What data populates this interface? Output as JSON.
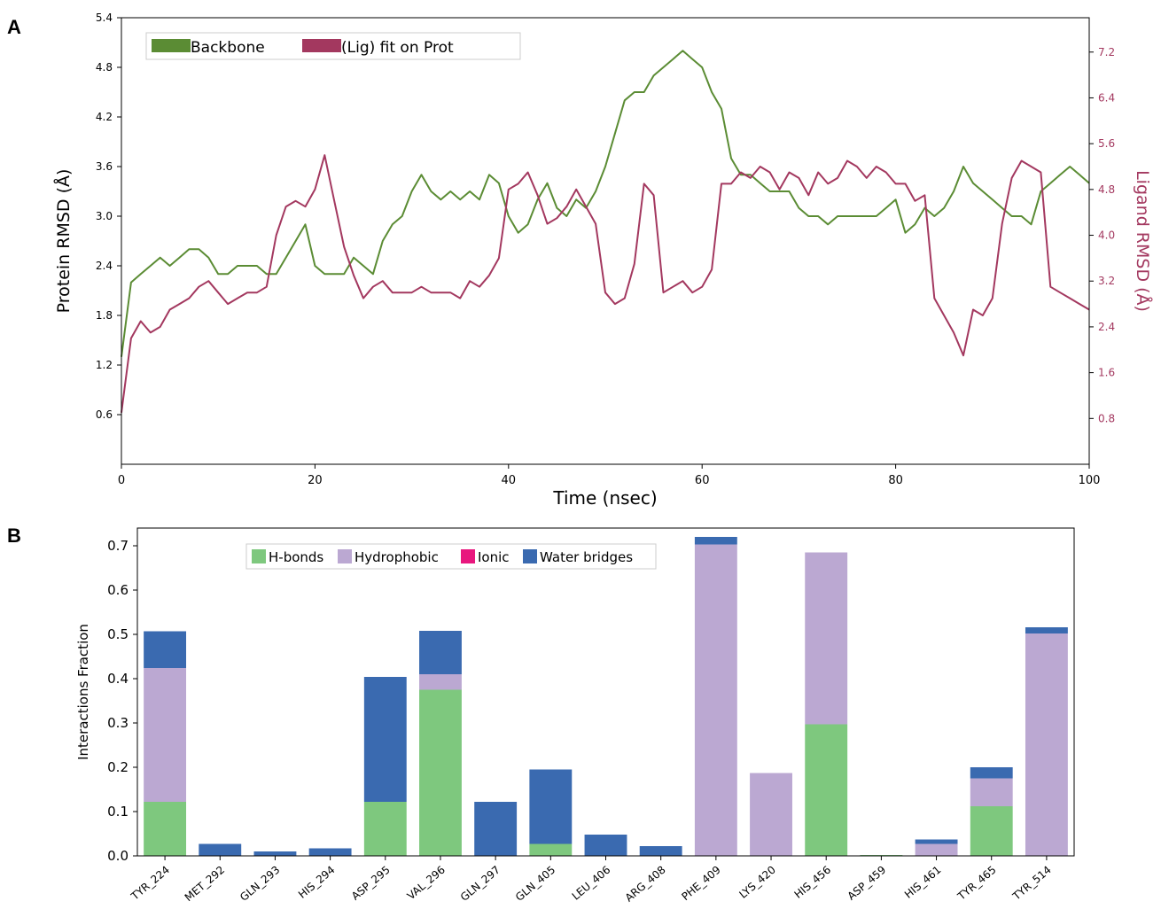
{
  "panels": {
    "a_label": "A",
    "b_label": "B"
  },
  "chart_data": [
    {
      "type": "line",
      "panel": "A",
      "xlabel": "Time (nsec)",
      "ylabel_left": "Protein RMSD (Å)",
      "ylabel_right": "Ligand RMSD (Å)",
      "xlim": [
        0,
        100
      ],
      "ylim_left": [
        0,
        5.4
      ],
      "ylim_right": [
        0,
        7.8
      ],
      "x_ticks": [
        0,
        20,
        40,
        60,
        80,
        100
      ],
      "y_ticks_left": [
        "0.6",
        "1.2",
        "1.8",
        "2.4",
        "3.0",
        "3.6",
        "4.2",
        "4.8",
        "5.4"
      ],
      "y_ticks_right": [
        "0.8",
        "1.6",
        "2.4",
        "3.2",
        "4.0",
        "4.8",
        "5.6",
        "6.4",
        "7.2"
      ],
      "legend_position": "top-left",
      "series": [
        {
          "name": "Backbone",
          "axis": "left",
          "color": "#5b8c34",
          "x": [
            0,
            1,
            2,
            3,
            4,
            5,
            6,
            7,
            8,
            9,
            10,
            11,
            12,
            13,
            14,
            15,
            16,
            17,
            18,
            19,
            20,
            21,
            22,
            23,
            24,
            25,
            26,
            27,
            28,
            29,
            30,
            31,
            32,
            33,
            34,
            35,
            36,
            37,
            38,
            39,
            40,
            41,
            42,
            43,
            44,
            45,
            46,
            47,
            48,
            49,
            50,
            51,
            52,
            53,
            54,
            55,
            56,
            57,
            58,
            59,
            60,
            61,
            62,
            63,
            64,
            65,
            66,
            67,
            68,
            69,
            70,
            71,
            72,
            73,
            74,
            75,
            76,
            77,
            78,
            79,
            80,
            81,
            82,
            83,
            84,
            85,
            86,
            87,
            88,
            89,
            90,
            91,
            92,
            93,
            94,
            95,
            96,
            97,
            98,
            99,
            100
          ],
          "y": [
            1.3,
            2.2,
            2.3,
            2.4,
            2.5,
            2.4,
            2.5,
            2.6,
            2.6,
            2.5,
            2.3,
            2.3,
            2.4,
            2.4,
            2.4,
            2.3,
            2.3,
            2.5,
            2.7,
            2.9,
            2.4,
            2.3,
            2.3,
            2.3,
            2.5,
            2.4,
            2.3,
            2.7,
            2.9,
            3.0,
            3.3,
            3.5,
            3.3,
            3.2,
            3.3,
            3.2,
            3.3,
            3.2,
            3.5,
            3.4,
            3.0,
            2.8,
            2.9,
            3.2,
            3.4,
            3.1,
            3.0,
            3.2,
            3.1,
            3.3,
            3.6,
            4.0,
            4.4,
            4.5,
            4.5,
            4.7,
            4.8,
            4.9,
            5.0,
            4.9,
            4.8,
            4.5,
            4.3,
            3.7,
            3.5,
            3.5,
            3.4,
            3.3,
            3.3,
            3.3,
            3.1,
            3.0,
            3.0,
            2.9,
            3.0,
            3.0,
            3.0,
            3.0,
            3.0,
            3.1,
            3.2,
            2.8,
            2.9,
            3.1,
            3.0,
            3.1,
            3.3,
            3.6,
            3.4,
            3.3,
            3.2,
            3.1,
            3.0,
            3.0,
            2.9,
            3.3,
            3.4,
            3.5,
            3.6,
            3.5,
            3.4
          ]
        },
        {
          "name": "(Lig) fit on Prot",
          "axis": "right",
          "color": "#a3385f",
          "x": [
            0,
            1,
            2,
            3,
            4,
            5,
            6,
            7,
            8,
            9,
            10,
            11,
            12,
            13,
            14,
            15,
            16,
            17,
            18,
            19,
            20,
            21,
            22,
            23,
            24,
            25,
            26,
            27,
            28,
            29,
            30,
            31,
            32,
            33,
            34,
            35,
            36,
            37,
            38,
            39,
            40,
            41,
            42,
            43,
            44,
            45,
            46,
            47,
            48,
            49,
            50,
            51,
            52,
            53,
            54,
            55,
            56,
            57,
            58,
            59,
            60,
            61,
            62,
            63,
            64,
            65,
            66,
            67,
            68,
            69,
            70,
            71,
            72,
            73,
            74,
            75,
            76,
            77,
            78,
            79,
            80,
            81,
            82,
            83,
            84,
            85,
            86,
            87,
            88,
            89,
            90,
            91,
            92,
            93,
            94,
            95,
            96,
            97,
            98,
            99,
            100
          ],
          "y": [
            0.9,
            2.2,
            2.5,
            2.3,
            2.4,
            2.7,
            2.8,
            2.9,
            3.1,
            3.2,
            3.0,
            2.8,
            2.9,
            3.0,
            3.0,
            3.1,
            4.0,
            4.5,
            4.6,
            4.5,
            4.8,
            5.4,
            4.6,
            3.8,
            3.3,
            2.9,
            3.1,
            3.2,
            3.0,
            3.0,
            3.0,
            3.1,
            3.0,
            3.0,
            3.0,
            2.9,
            3.2,
            3.1,
            3.3,
            3.6,
            4.8,
            4.9,
            5.1,
            4.7,
            4.2,
            4.3,
            4.5,
            4.8,
            4.5,
            4.2,
            3.0,
            2.8,
            2.9,
            3.5,
            4.9,
            4.7,
            3.0,
            3.1,
            3.2,
            3.0,
            3.1,
            3.4,
            4.9,
            4.9,
            5.1,
            5.0,
            5.2,
            5.1,
            4.8,
            5.1,
            5.0,
            4.7,
            5.1,
            4.9,
            5.0,
            5.3,
            5.2,
            5.0,
            5.2,
            5.1,
            4.9,
            4.9,
            4.6,
            4.7,
            2.9,
            2.6,
            2.3,
            1.9,
            2.7,
            2.6,
            2.9,
            4.2,
            5.0,
            5.3,
            5.2,
            5.1,
            3.1,
            3.0,
            2.9,
            2.8,
            2.7
          ]
        }
      ]
    },
    {
      "type": "bar",
      "stacked": true,
      "panel": "B",
      "ylabel": "Interactions Fraction",
      "ylim": [
        0,
        0.74
      ],
      "y_ticks": [
        "0.0",
        "0.1",
        "0.2",
        "0.3",
        "0.4",
        "0.5",
        "0.6",
        "0.7"
      ],
      "legend_position": "top-center",
      "categories": [
        "TYR_224",
        "MET_292",
        "GLN_293",
        "HIS_294",
        "ASP_295",
        "VAL_296",
        "GLN_297",
        "GLN_405",
        "LEU_406",
        "ARG_408",
        "PHE_409",
        "LYS_420",
        "HIS_456",
        "ASP_459",
        "HIS_461",
        "TYR_465",
        "TYR_514"
      ],
      "series": [
        {
          "name": "H-bonds",
          "color": "#7ec87e",
          "values": [
            0.122,
            0,
            0,
            0,
            0.122,
            0.375,
            0,
            0.027,
            0,
            0,
            0,
            0,
            0.297,
            0.002,
            0,
            0.112,
            0
          ]
        },
        {
          "name": "Hydrophobic",
          "color": "#bba8d2",
          "values": [
            0.302,
            0,
            0,
            0,
            0,
            0.035,
            0,
            0,
            0,
            0,
            0.703,
            0.187,
            0.388,
            0,
            0.027,
            0.063,
            0.502
          ]
        },
        {
          "name": "Ionic",
          "color": "#e8177e",
          "values": [
            0,
            0,
            0,
            0,
            0,
            0,
            0,
            0,
            0,
            0,
            0,
            0,
            0,
            0,
            0,
            0,
            0
          ]
        },
        {
          "name": "Water bridges",
          "color": "#3a6ab0",
          "values": [
            0.083,
            0.027,
            0.01,
            0.017,
            0.282,
            0.098,
            0.122,
            0.168,
            0.048,
            0.022,
            0.017,
            0,
            0,
            0,
            0.01,
            0.025,
            0.014
          ]
        }
      ]
    }
  ]
}
